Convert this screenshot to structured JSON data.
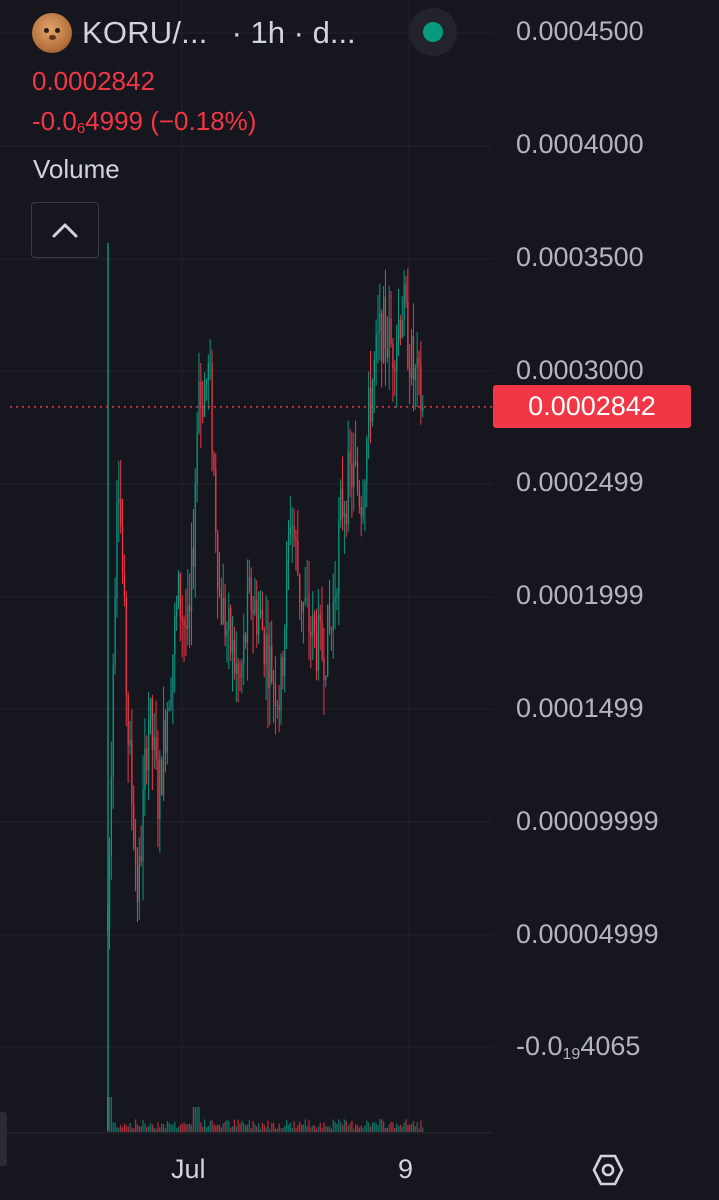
{
  "header": {
    "symbol": "KORU/...",
    "interval": "· 1h · d...",
    "avatar_icon": "token-avatar-icon",
    "live_indicator_color": "#089981"
  },
  "quote": {
    "price": "0.0002842",
    "change_prefix": "-0.0",
    "change_subscript": "6",
    "change_suffix": "4999 (−0.18%)",
    "change_color": "#f23645"
  },
  "volume": {
    "label": "Volume",
    "collapse_icon": "chevron-up-icon"
  },
  "price_axis": {
    "labels": [
      {
        "text": "0.0004500"
      },
      {
        "text": "0.0004000"
      },
      {
        "text": "0.0003500"
      },
      {
        "text": "0.0003000"
      },
      {
        "text": "0.0002499"
      },
      {
        "text": "0.0001999"
      },
      {
        "text": "0.0001499"
      },
      {
        "text": "0.00009999"
      },
      {
        "text": "0.00004999"
      }
    ],
    "bottom_label_prefix": "-0.0",
    "bottom_label_subscript": "19",
    "bottom_label_suffix": "4065",
    "last_price_tag": "0.0002842",
    "last_price_color": "#f23645"
  },
  "time_axis": {
    "labels": [
      "Jul",
      "9"
    ]
  },
  "settings_icon": "settings-hexagon-icon",
  "colors": {
    "background": "#16161e",
    "up": "#089981",
    "down": "#f23645",
    "grid": "#22232b"
  },
  "chart_data": {
    "type": "candlestick",
    "interval": "1h",
    "last_price": 0.0002842,
    "ylim": [
      -4.065e-08,
      0.00045
    ],
    "close_path": [
      {
        "p": 5.3e-05
      },
      {
        "p": 0.00027
      },
      {
        "p": 0.00014
      },
      {
        "p": 6.5e-05
      },
      {
        "p": 0.00015
      },
      {
        "p": 0.00011
      },
      {
        "p": 0.00016
      },
      {
        "p": 0.0002
      },
      {
        "p": 0.00018
      },
      {
        "p": 0.000285
      },
      {
        "p": 0.0003
      },
      {
        "p": 0.0002
      },
      {
        "p": 0.00018
      },
      {
        "p": 0.00016
      },
      {
        "p": 0.0002
      },
      {
        "p": 0.00019
      },
      {
        "p": 0.00017
      },
      {
        "p": 0.000155
      },
      {
        "p": 0.00024
      },
      {
        "p": 0.0002
      },
      {
        "p": 0.000185
      },
      {
        "p": 0.000175
      },
      {
        "p": 0.000185
      },
      {
        "p": 0.00024
      },
      {
        "p": 0.000255
      },
      {
        "p": 0.000245
      },
      {
        "p": 0.000295
      },
      {
        "p": 0.00032
      },
      {
        "p": 0.00031
      },
      {
        "p": 0.00033
      },
      {
        "p": 0.0003
      },
      {
        "p": 0.0002842
      }
    ]
  }
}
